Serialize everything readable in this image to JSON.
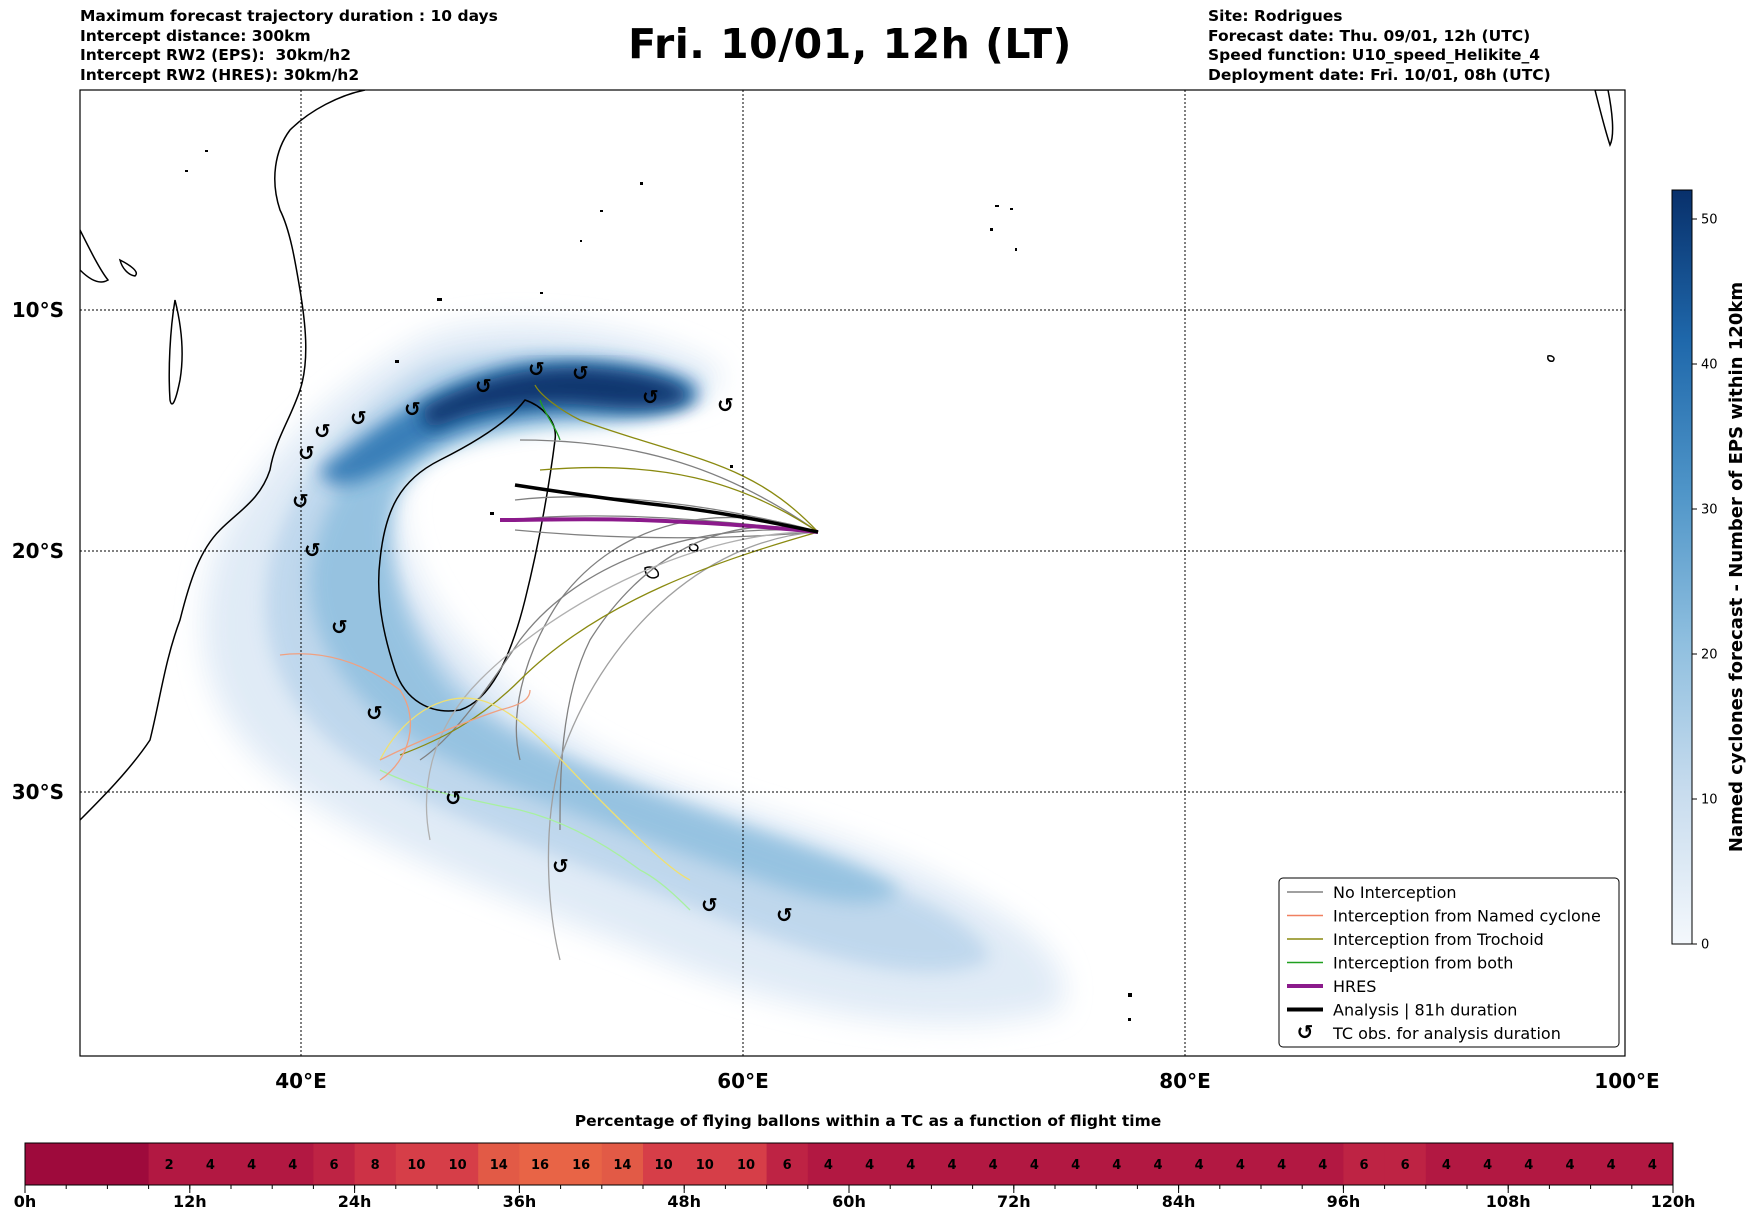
{
  "header_left": [
    "Maximum forecast trajectory duration : 10 days",
    "Intercept distance: 300km",
    "Intercept RW2 (EPS):  30km/h2",
    "Intercept RW2 (HRES): 30km/h2"
  ],
  "header_right": [
    "Site: Rodrigues",
    "Forecast date: Thu. 09/01, 12h (UTC)",
    "Speed function: U10_speed_Helikite_4",
    "Deployment date: Fri. 10/01, 08h (UTC)"
  ],
  "title": "Fri. 10/01, 12h (LT)",
  "map": {
    "lon_ticks": [
      {
        "lon": 40,
        "label": "40°E"
      },
      {
        "lon": 60,
        "label": "60°E"
      },
      {
        "lon": 80,
        "label": "80°E"
      },
      {
        "lon": 100,
        "label": "100°E"
      }
    ],
    "lat_ticks": [
      {
        "lat": -10,
        "label": "10°S"
      },
      {
        "lat": -20,
        "label": "20°S"
      },
      {
        "lat": -30,
        "label": "30°S"
      }
    ],
    "colorbar": {
      "label": "Named cyclones forecast - Number of EPS within 120km",
      "ticks": [
        0,
        10,
        20,
        30,
        40,
        50
      ],
      "max": 52
    },
    "legend": [
      {
        "label": "No Interception",
        "color": "#808080",
        "style": "line"
      },
      {
        "label": "Interception from Named cyclone",
        "color": "#f08060",
        "style": "line"
      },
      {
        "label": "Interception from Trochoid",
        "color": "#8a8a10",
        "style": "line"
      },
      {
        "label": "Interception from both",
        "color": "#20a020",
        "style": "line"
      },
      {
        "label": "HRES",
        "color": "#8b1a8b",
        "style": "thick"
      },
      {
        "label": "Analysis | 81h duration",
        "color": "#000000",
        "style": "thick"
      },
      {
        "label": "TC obs. for analysis duration",
        "color": "#000000",
        "style": "symbol"
      }
    ],
    "tc_symbol": "↺"
  },
  "chart_data": {
    "type": "heatmap",
    "title": "Percentage of flying ballons within a TC as a function of flight time",
    "x_tick_labels": [
      "0h",
      "12h",
      "24h",
      "36h",
      "48h",
      "60h",
      "72h",
      "84h",
      "96h",
      "108h",
      "120h"
    ],
    "bin_hours": 3,
    "values": [
      null,
      null,
      null,
      2,
      4,
      4,
      4,
      6,
      8,
      10,
      10,
      14,
      16,
      16,
      14,
      10,
      10,
      10,
      6,
      4,
      4,
      4,
      4,
      4,
      4,
      4,
      4,
      4,
      4,
      4,
      4,
      4,
      6,
      6,
      4,
      4,
      4,
      4,
      4,
      4
    ]
  }
}
